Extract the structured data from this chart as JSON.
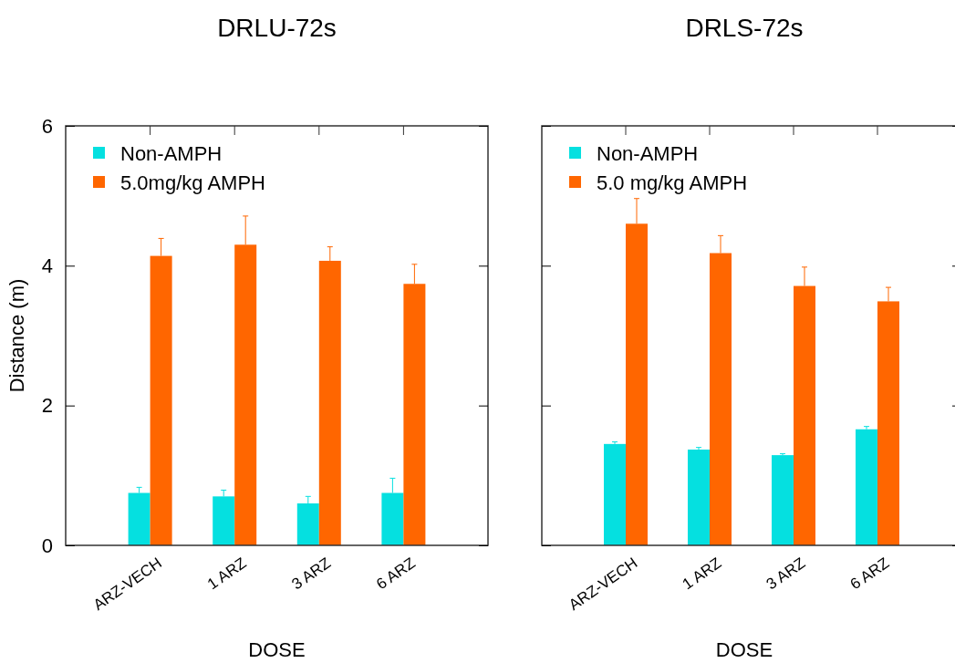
{
  "chart_data": [
    {
      "type": "bar",
      "title": "DRLU-72s",
      "xlabel": "DOSE",
      "ylabel": "Distance (m)",
      "categories": [
        "ARZ-VECH",
        "1 ARZ",
        "3 ARZ",
        "6 ARZ"
      ],
      "ylim": [
        0,
        6
      ],
      "yticks": [
        0,
        2,
        4,
        6
      ],
      "legend": "top left",
      "grid": false,
      "series": [
        {
          "name": "Non-AMPH",
          "color": "#05e0e0",
          "values": [
            0.75,
            0.7,
            0.6,
            0.75
          ],
          "errors": [
            [
              0.75,
              0.83
            ],
            [
              0.7,
              0.79
            ],
            [
              0.6,
              0.7
            ],
            [
              0.75,
              0.96
            ]
          ]
        },
        {
          "name": "5.0mg/kg AMPH",
          "color": "#ff6600",
          "values": [
            4.14,
            4.3,
            4.07,
            3.74
          ],
          "errors": [
            [
              4.14,
              4.39
            ],
            [
              4.3,
              4.71
            ],
            [
              4.07,
              4.27
            ],
            [
              3.74,
              4.02
            ]
          ]
        }
      ]
    },
    {
      "type": "bar",
      "title": "DRLS-72s",
      "xlabel": "DOSE",
      "categories": [
        "ARZ-VECH",
        "1 ARZ",
        "3 ARZ",
        "6 ARZ"
      ],
      "ylim": [
        0,
        6
      ],
      "yticks": [
        0,
        2,
        4,
        6
      ],
      "tick_labels": "x",
      "legend": "top left",
      "grid": false,
      "series": [
        {
          "name": "Non-AMPH",
          "color": "#05e0e0",
          "values": [
            1.45,
            1.37,
            1.29,
            1.66
          ],
          "errors": [
            [
              1.45,
              1.48
            ],
            [
              1.37,
              1.4
            ],
            [
              1.29,
              1.31
            ],
            [
              1.66,
              1.7
            ]
          ]
        },
        {
          "name": "5.0 mg/kg AMPH",
          "color": "#ff6600",
          "values": [
            4.6,
            4.18,
            3.71,
            3.49
          ],
          "errors": [
            [
              4.6,
              4.96
            ],
            [
              4.18,
              4.43
            ],
            [
              3.71,
              3.98
            ],
            [
              3.49,
              3.69
            ]
          ]
        }
      ]
    }
  ]
}
